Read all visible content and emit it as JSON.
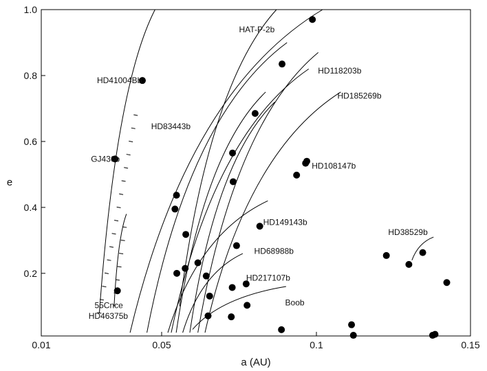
{
  "chart_data": {
    "type": "scatter",
    "title": "",
    "xlabel": "a (AU)",
    "ylabel": "e",
    "xlim": [
      0.01,
      0.15
    ],
    "ylim": [
      0.01,
      1.0
    ],
    "grid": false,
    "x_ticks": [
      0.01,
      0.05,
      0.1,
      0.15
    ],
    "x_tick_labels": [
      "0.01",
      "0.05",
      "0.1",
      "0.15"
    ],
    "y_ticks": [
      0.2,
      0.4,
      0.6,
      0.8,
      1.0
    ],
    "y_tick_labels": [
      "0.2",
      "0.4",
      "0.6",
      "0.8",
      "1.0"
    ],
    "colors": {
      "marks": "#000000",
      "text": "#111111"
    },
    "planets": [
      {
        "label": "",
        "x": 0.0987,
        "y": 0.97
      },
      {
        "label": "",
        "x": 0.0889,
        "y": 0.835
      },
      {
        "label": "",
        "x": 0.0802,
        "y": 0.685
      },
      {
        "label": "",
        "x": 0.0729,
        "y": 0.565
      },
      {
        "label": "",
        "x": 0.0731,
        "y": 0.478
      },
      {
        "label": "",
        "x": 0.0936,
        "y": 0.498
      },
      {
        "label": "",
        "x": 0.0965,
        "y": 0.534
      },
      {
        "label": "",
        "x": 0.0969,
        "y": 0.54
      },
      {
        "label": "",
        "x": 0.0543,
        "y": 0.395
      },
      {
        "label": "",
        "x": 0.0548,
        "y": 0.437
      },
      {
        "label": "",
        "x": 0.0578,
        "y": 0.318
      },
      {
        "label": "",
        "x": 0.0617,
        "y": 0.232
      },
      {
        "label": "",
        "x": 0.0576,
        "y": 0.215
      },
      {
        "label": "",
        "x": 0.0549,
        "y": 0.2
      },
      {
        "label": "",
        "x": 0.0742,
        "y": 0.284
      },
      {
        "label": "",
        "x": 0.0817,
        "y": 0.343
      },
      {
        "label": "",
        "x": 0.0644,
        "y": 0.192
      },
      {
        "label": "",
        "x": 0.0728,
        "y": 0.157
      },
      {
        "label": "",
        "x": 0.0773,
        "y": 0.168
      },
      {
        "label": "",
        "x": 0.0655,
        "y": 0.131
      },
      {
        "label": "",
        "x": 0.0776,
        "y": 0.103
      },
      {
        "label": "",
        "x": 0.065,
        "y": 0.071
      },
      {
        "label": "",
        "x": 0.0725,
        "y": 0.068
      },
      {
        "label": "",
        "x": 0.0887,
        "y": 0.029
      },
      {
        "label": "",
        "x": 0.1114,
        "y": 0.044
      },
      {
        "label": "",
        "x": 0.112,
        "y": 0.012
      },
      {
        "label": "",
        "x": 0.1377,
        "y": 0.012
      },
      {
        "label": "",
        "x": 0.1227,
        "y": 0.254
      },
      {
        "label": "",
        "x": 0.13,
        "y": 0.227
      },
      {
        "label": "",
        "x": 0.1345,
        "y": 0.263
      },
      {
        "label": "",
        "x": 0.1423,
        "y": 0.172
      },
      {
        "label": "",
        "x": 0.0345,
        "y": 0.547
      },
      {
        "label": "",
        "x": 0.0436,
        "y": 0.785
      },
      {
        "label": "",
        "x": 0.0353,
        "y": 0.147
      },
      {
        "label": "",
        "x": 0.1385,
        "y": 0.015
      }
    ],
    "annotations": [
      {
        "text": "HAT-P-2b",
        "x": 0.075,
        "y": 0.94
      },
      {
        "text": "HD41004Bb",
        "x": 0.0285,
        "y": 0.785
      },
      {
        "text": "HD118203b",
        "x": 0.1005,
        "y": 0.815
      },
      {
        "text": "HD185269b",
        "x": 0.1068,
        "y": 0.738
      },
      {
        "text": "HD83443b",
        "x": 0.0465,
        "y": 0.646
      },
      {
        "text": "GJ436b",
        "x": 0.0265,
        "y": 0.547
      },
      {
        "text": "HD108147b",
        "x": 0.0985,
        "y": 0.526
      },
      {
        "text": "HD149143b",
        "x": 0.0828,
        "y": 0.355
      },
      {
        "text": "HD38529b",
        "x": 0.1233,
        "y": 0.325
      },
      {
        "text": "HD68988b",
        "x": 0.0799,
        "y": 0.267
      },
      {
        "text": "HD217107b",
        "x": 0.0773,
        "y": 0.186
      },
      {
        "text": "Boob",
        "x": 0.0899,
        "y": 0.111
      },
      {
        "text": "55Cnce",
        "x": 0.0277,
        "y": 0.103
      },
      {
        "text": "HD46375b",
        "x": 0.0257,
        "y": 0.07
      }
    ],
    "tracks": [
      {
        "x0": 0.0293,
        "y0": 0.08,
        "x1": 0.0478,
        "y1": 1.0,
        "ticks": [
          0.08,
          0.12,
          0.16,
          0.2,
          0.24,
          0.28,
          0.32,
          0.36,
          0.4,
          0.44,
          0.48,
          0.52,
          0.56,
          0.6,
          0.64,
          0.68
        ]
      },
      {
        "x0": 0.0342,
        "y0": 0.1,
        "x1": 0.0383,
        "y1": 0.38,
        "ticks": [
          0.14,
          0.18,
          0.22,
          0.26,
          0.3,
          0.34
        ]
      },
      {
        "x0": 0.0558,
        "y0": 0.1,
        "x1": 0.0871,
        "y1": 1.0,
        "ticks": []
      },
      {
        "x0": 0.0395,
        "y0": 0.02,
        "x1": 0.102,
        "y1": 1.0,
        "ticks": []
      },
      {
        "x0": 0.0451,
        "y0": 0.02,
        "x1": 0.0905,
        "y1": 0.9,
        "ticks": []
      },
      {
        "x0": 0.0531,
        "y0": 0.02,
        "x1": 0.0975,
        "y1": 0.82,
        "ticks": []
      },
      {
        "x0": 0.0547,
        "y0": 0.02,
        "x1": 0.0836,
        "y1": 0.75,
        "ticks": []
      },
      {
        "x0": 0.0591,
        "y0": 0.02,
        "x1": 0.0866,
        "y1": 0.72,
        "ticks": []
      },
      {
        "x0": 0.0617,
        "y0": 0.02,
        "x1": 0.1006,
        "y1": 0.87,
        "ticks": []
      },
      {
        "x0": 0.064,
        "y0": 0.02,
        "x1": 0.1079,
        "y1": 0.75,
        "ticks": []
      },
      {
        "x0": 0.052,
        "y0": 0.02,
        "x1": 0.0843,
        "y1": 0.42,
        "ticks": []
      },
      {
        "x0": 0.0568,
        "y0": 0.02,
        "x1": 0.0762,
        "y1": 0.26,
        "ticks": []
      },
      {
        "x0": 0.06,
        "y0": 0.03,
        "x1": 0.0902,
        "y1": 0.16,
        "ticks": []
      },
      {
        "x0": 0.131,
        "y0": 0.24,
        "x1": 0.138,
        "y1": 0.31,
        "ticks": []
      }
    ]
  }
}
